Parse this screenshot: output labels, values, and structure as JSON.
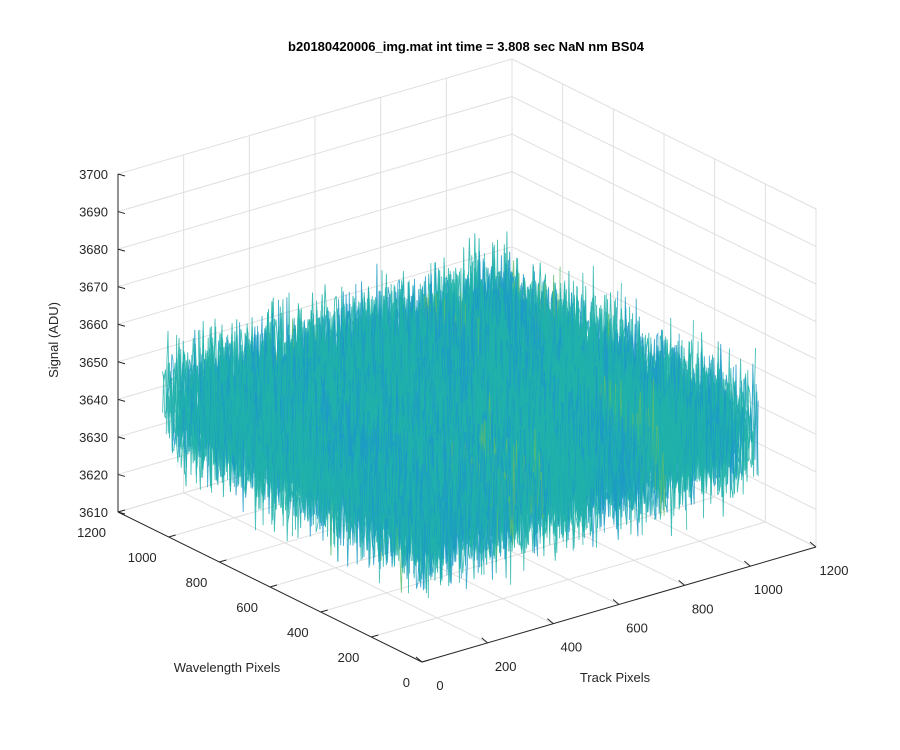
{
  "chart_data": {
    "type": "surface",
    "title": "b20180420006_img.mat int time = 3.808 sec  NaN nm BS04",
    "xlabel": "Track Pixels",
    "ylabel": "Wavelength Pixels",
    "zlabel": "Signal (ADU)",
    "xlim": [
      0,
      1200
    ],
    "ylim": [
      0,
      1200
    ],
    "zlim": [
      3610,
      3700
    ],
    "xticks": [
      "0",
      "200",
      "400",
      "600",
      "800",
      "1000",
      "1200"
    ],
    "yticks": [
      "0",
      "200",
      "400",
      "600",
      "800",
      "1000",
      "1200"
    ],
    "zticks": [
      "3610",
      "3620",
      "3630",
      "3640",
      "3650",
      "3660",
      "3670",
      "3680",
      "3690",
      "3700"
    ],
    "grid": true,
    "data_extent": {
      "x": [
        0,
        1024
      ],
      "y": [
        0,
        1024
      ]
    },
    "z_typical": 3645,
    "z_noise_range": [
      3615,
      3695
    ],
    "colormap": [
      "#0072BD",
      "#1d9bc6",
      "#20b2aa",
      "#5cbd6b",
      "#a3bd4a",
      "#d9b530"
    ]
  }
}
